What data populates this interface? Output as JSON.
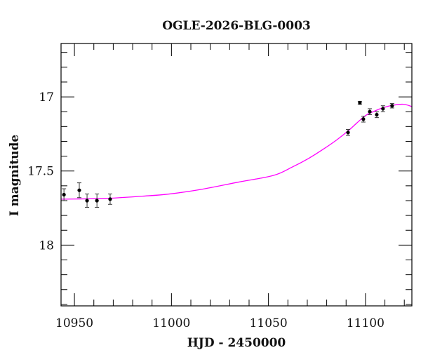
{
  "chart_data": {
    "type": "scatter",
    "title": "OGLE-2026-BLG-0003",
    "xlabel": "HJD - 2450000",
    "ylabel": "I magnitude",
    "xlim": [
      10943.1,
      11123.9
    ],
    "ylim": [
      18.41,
      16.64
    ],
    "y_inverted": true,
    "grid": false,
    "x_ticks": [
      10950,
      11000,
      11050,
      11100
    ],
    "x_tick_labels": [
      "10950",
      "11000",
      "11050",
      "11100"
    ],
    "x_minor_step": 10,
    "y_ticks": [
      17,
      17.5,
      18
    ],
    "y_tick_labels": [
      "17",
      "17.5",
      "18"
    ],
    "y_minor_step": 0.1,
    "series": [
      {
        "type": "errorbar",
        "color": "#000000",
        "points": [
          {
            "x": 10944.6,
            "y": 17.66,
            "err": 0.04
          },
          {
            "x": 10952.5,
            "y": 17.63,
            "err": 0.05
          },
          {
            "x": 10956.5,
            "y": 17.7,
            "err": 0.045
          },
          {
            "x": 10961.6,
            "y": 17.7,
            "err": 0.045
          },
          {
            "x": 10968.4,
            "y": 17.69,
            "err": 0.035
          },
          {
            "x": 11091.0,
            "y": 17.24,
            "err": 0.02
          },
          {
            "x": 11097.1,
            "y": 17.04,
            "err": 0.01
          },
          {
            "x": 11098.9,
            "y": 17.15,
            "err": 0.02
          },
          {
            "x": 11102.2,
            "y": 17.1,
            "err": 0.02
          },
          {
            "x": 11105.8,
            "y": 17.12,
            "err": 0.02
          },
          {
            "x": 11109.0,
            "y": 17.08,
            "err": 0.02
          },
          {
            "x": 11113.7,
            "y": 17.06,
            "err": 0.015
          }
        ]
      },
      {
        "type": "line",
        "color": "#ff00ff",
        "points": [
          {
            "x": 10943.1,
            "y": 17.69
          },
          {
            "x": 10965.9,
            "y": 17.685
          },
          {
            "x": 10985.0,
            "y": 17.67
          },
          {
            "x": 10998.4,
            "y": 17.656
          },
          {
            "x": 11015.0,
            "y": 17.625
          },
          {
            "x": 11034.6,
            "y": 17.575
          },
          {
            "x": 11052.6,
            "y": 17.53
          },
          {
            "x": 11062.0,
            "y": 17.475
          },
          {
            "x": 11070.7,
            "y": 17.415
          },
          {
            "x": 11078.0,
            "y": 17.355
          },
          {
            "x": 11085.2,
            "y": 17.29
          },
          {
            "x": 11091.0,
            "y": 17.23
          },
          {
            "x": 11099.6,
            "y": 17.13
          },
          {
            "x": 11104.0,
            "y": 17.1
          },
          {
            "x": 11108.7,
            "y": 17.075
          },
          {
            "x": 11114.0,
            "y": 17.057
          },
          {
            "x": 11119.5,
            "y": 17.05
          },
          {
            "x": 11123.9,
            "y": 17.065
          }
        ]
      }
    ]
  }
}
